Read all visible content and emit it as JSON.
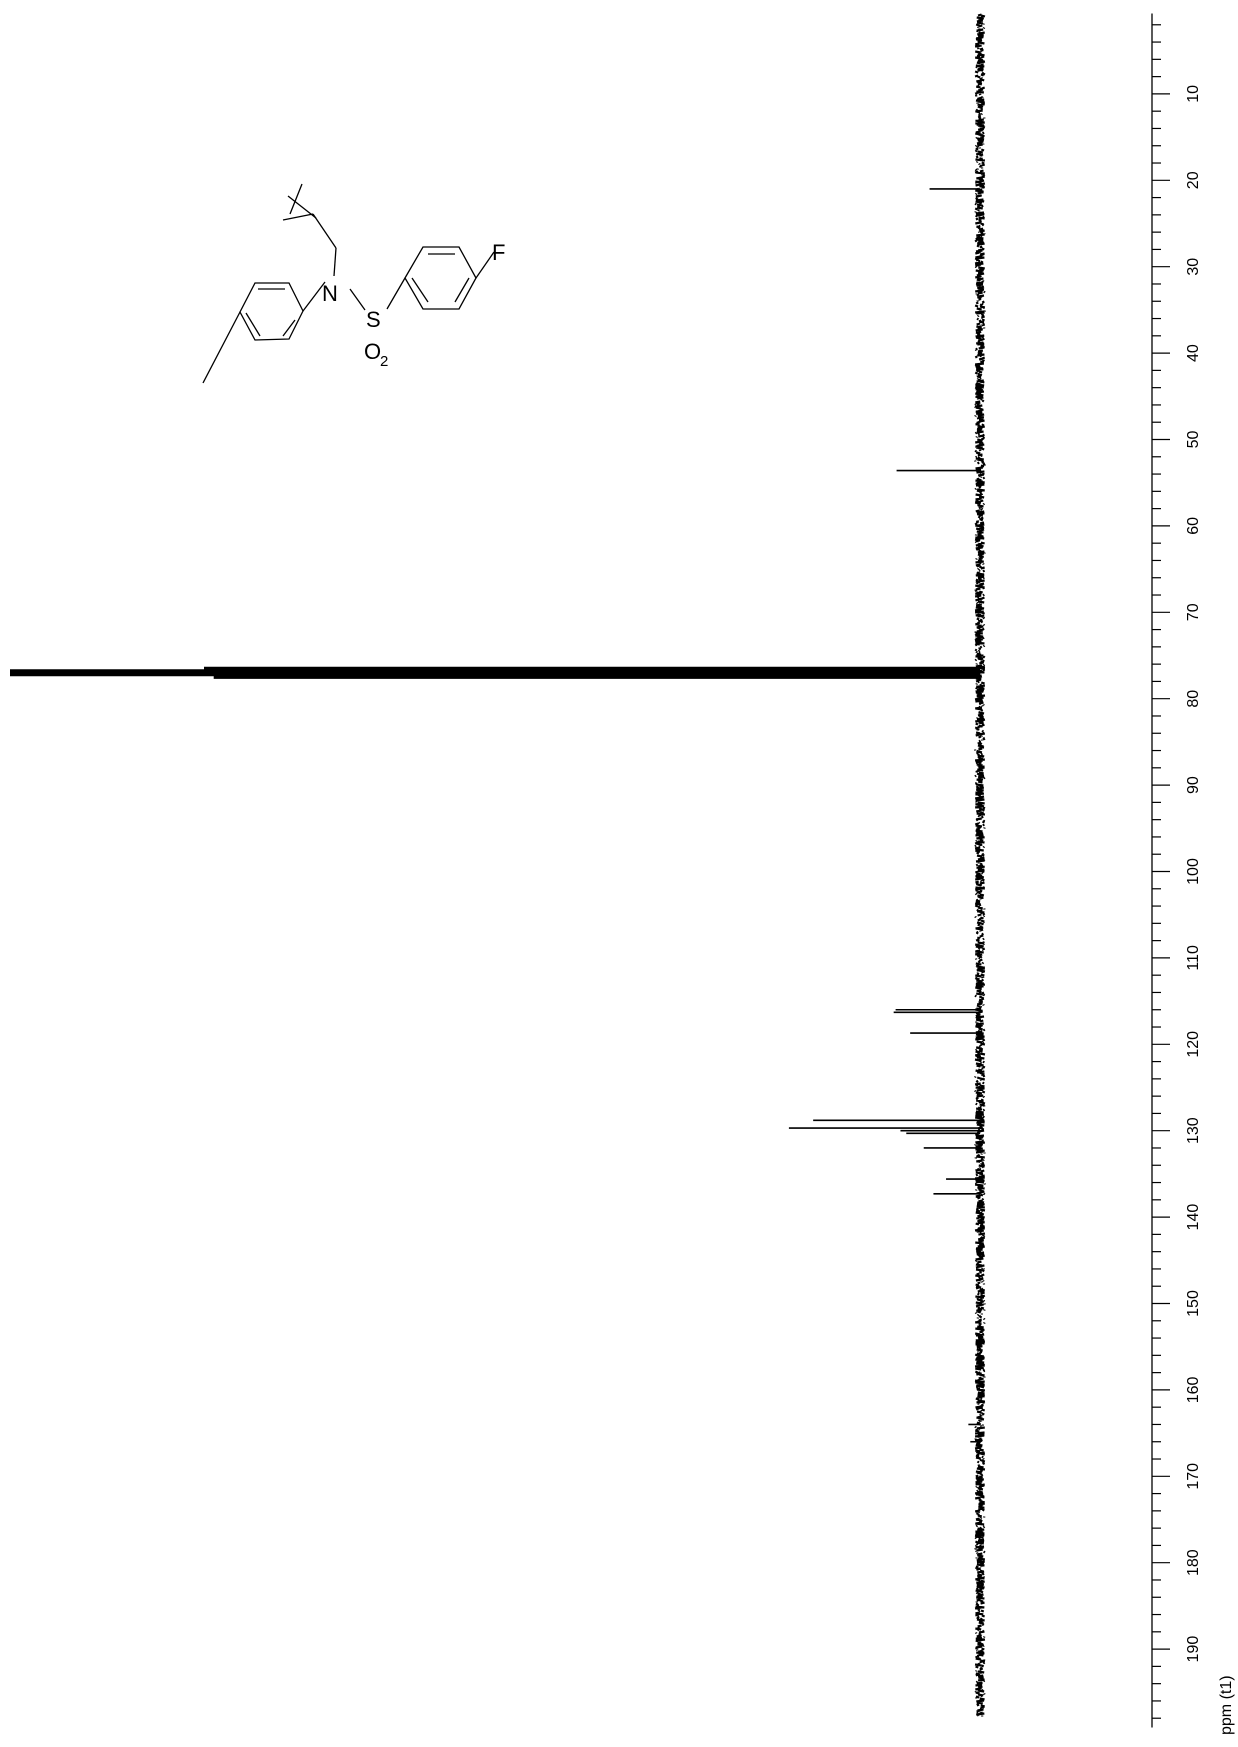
{
  "chart_data": {
    "type": "line",
    "orientation": "vertical",
    "xlabel": "ppm (t1)",
    "axis_range": [
      0,
      200
    ],
    "major_ticks": [
      10,
      20,
      30,
      40,
      50,
      60,
      70,
      80,
      90,
      100,
      110,
      120,
      130,
      140,
      150,
      160,
      170,
      180,
      190
    ],
    "tick_labels": [
      "10",
      "20",
      "30",
      "40",
      "50",
      "60",
      "70",
      "80",
      "90",
      "100",
      "110",
      "120",
      "130",
      "140",
      "150",
      "160",
      "170",
      "180",
      "190"
    ],
    "minor_tick_step": 2,
    "baseline_noise": true,
    "peaks": [
      {
        "ppm": 21.0,
        "intensity": 0.052
      },
      {
        "ppm": 53.6,
        "intensity": 0.086
      },
      {
        "ppm": 76.7,
        "intensity": 0.8
      },
      {
        "ppm": 77.0,
        "intensity": 1.0
      },
      {
        "ppm": 77.3,
        "intensity": 0.79
      },
      {
        "ppm": 116.0,
        "intensity": 0.087
      },
      {
        "ppm": 116.3,
        "intensity": 0.089
      },
      {
        "ppm": 118.7,
        "intensity": 0.072
      },
      {
        "ppm": 128.8,
        "intensity": 0.172
      },
      {
        "ppm": 129.7,
        "intensity": 0.197
      },
      {
        "ppm": 130.0,
        "intensity": 0.082
      },
      {
        "ppm": 130.3,
        "intensity": 0.076
      },
      {
        "ppm": 132.0,
        "intensity": 0.058
      },
      {
        "ppm": 135.6,
        "intensity": 0.035
      },
      {
        "ppm": 137.3,
        "intensity": 0.048
      },
      {
        "ppm": 164.0,
        "intensity": 0.012
      },
      {
        "ppm": 166.0,
        "intensity": 0.01
      }
    ]
  },
  "structure": {
    "atom_labels": {
      "nitrogen": "N",
      "sulfur": "S",
      "oxygen": "O",
      "oxygen_count": "2",
      "fluorine": "F"
    }
  }
}
